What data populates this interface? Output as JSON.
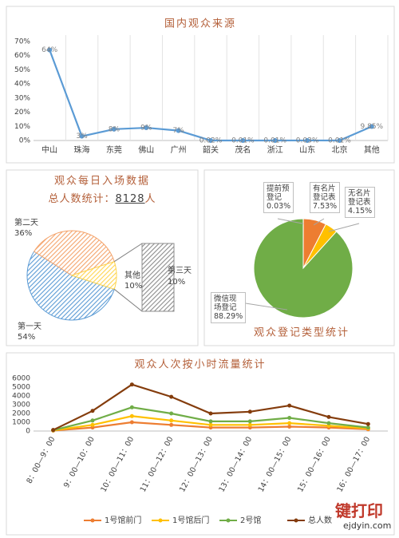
{
  "chart_data": [
    {
      "type": "line",
      "title": "国内观众来源",
      "categories": [
        "中山",
        "珠海",
        "东莞",
        "佛山",
        "广州",
        "韶关",
        "茂名",
        "浙江",
        "山东",
        "北京",
        "其他"
      ],
      "values": [
        64,
        3,
        8,
        9,
        7,
        0.02,
        0.01,
        0.01,
        0.03,
        0.01,
        9.85
      ],
      "value_labels": [
        "64%",
        "3%",
        "8%",
        "9%",
        "7%",
        "0.02%",
        "0.01%",
        "0.01%",
        "0.03%",
        "0.01%",
        "9.85%"
      ],
      "color": "#5b9bd5",
      "ylim": [
        0,
        70
      ],
      "yticks": [
        {
          "value": 0,
          "label": "0%"
        },
        {
          "value": 10,
          "label": "10%"
        },
        {
          "value": 20,
          "label": "20%"
        },
        {
          "value": 30,
          "label": "30%"
        },
        {
          "value": 40,
          "label": "40%"
        },
        {
          "value": 50,
          "label": "50%"
        },
        {
          "value": 60,
          "label": "60%"
        },
        {
          "value": 70,
          "label": "70%"
        }
      ],
      "grid": false
    },
    {
      "type": "pie",
      "title": "观众每日入场数据",
      "subtitle": "总人数统计：",
      "total": 8128,
      "total_unit": "人",
      "categories": [
        "第一天",
        "第二天",
        "其他"
      ],
      "values": [
        54,
        36,
        10
      ],
      "value_labels": [
        "54%",
        "36%",
        "10%"
      ],
      "colors": [
        "#5b9bd5",
        "#f4a46c",
        "#ffd54f"
      ],
      "hatch": true,
      "breakdown": {
        "categories": [
          "第三天"
        ],
        "values": [
          10
        ],
        "value_labels": [
          "10%"
        ],
        "color": "#8c8c8c"
      }
    },
    {
      "type": "pie",
      "title": "观众登记类型统计",
      "categories": [
        "提前预登记",
        "有名片登记表",
        "无名片登记表",
        "微信现场登记"
      ],
      "values": [
        0.03,
        7.53,
        4.15,
        88.29
      ],
      "value_labels": [
        "0.03%",
        "7.53%",
        "4.15%",
        "88.29%"
      ],
      "colors": [
        "#5b9bd5",
        "#ed7d31",
        "#ffc000",
        "#70ad47"
      ],
      "hatch": false
    },
    {
      "type": "line",
      "title": "观众人次按小时流量统计",
      "categories": [
        "8：00—9：00",
        "9：00—10：00",
        "10：00—11：00",
        "11：00—12：00",
        "12：00—13：00",
        "13：00—14：00",
        "14：00—15：00",
        "15：00—16：00",
        "16：00—17：00"
      ],
      "series": [
        {
          "name": "1号馆前门",
          "color": "#ed7d31",
          "values": [
            50,
            400,
            1000,
            700,
            400,
            400,
            500,
            400,
            200
          ]
        },
        {
          "name": "1号馆后门",
          "color": "#ffc000",
          "values": [
            80,
            700,
            1700,
            1200,
            700,
            700,
            900,
            600,
            300
          ]
        },
        {
          "name": "2号馆",
          "color": "#70ad47",
          "values": [
            100,
            1200,
            2700,
            2000,
            1100,
            1100,
            1500,
            900,
            400
          ]
        },
        {
          "name": "总人数",
          "color": "#843c0c",
          "values": [
            120,
            2300,
            5300,
            3900,
            2000,
            2200,
            2900,
            1600,
            800
          ]
        }
      ],
      "ylim": [
        0,
        6000
      ],
      "yticks": [
        0,
        1000,
        2000,
        3000,
        4000,
        5000,
        6000
      ],
      "grid": false,
      "legend": "bottom"
    }
  ],
  "watermark": {
    "text": "键打印",
    "url": "ejdyin.com"
  }
}
